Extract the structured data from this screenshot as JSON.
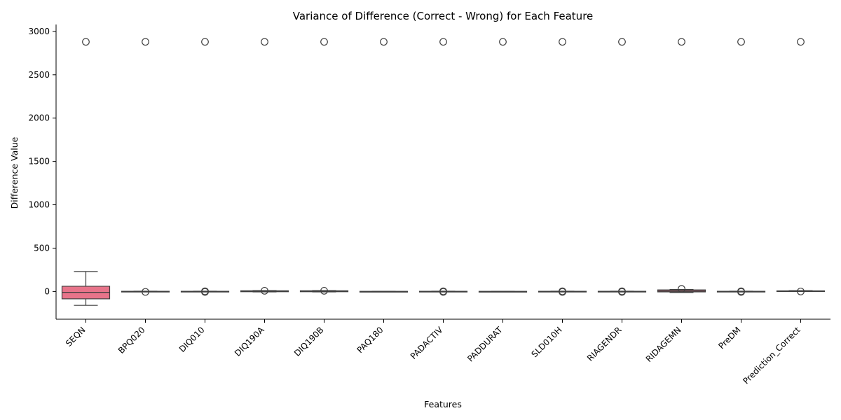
{
  "chart_data": {
    "type": "box",
    "title": "Variance of Difference (Correct - Wrong) for Each Feature",
    "xlabel": "Features",
    "ylabel": "Difference Value",
    "ylim": [
      -320,
      3080
    ],
    "yticks": [
      0,
      500,
      1000,
      1500,
      2000,
      2500,
      3000
    ],
    "grid": false,
    "colors": {
      "box_fill": "#e8748a",
      "line": "#3f3f3f",
      "axis": "#000000"
    },
    "categories": [
      "SEQN",
      "BPQ020",
      "DIQ010",
      "DIQ190A",
      "DIQ190B",
      "PAQ180",
      "PADACTIV",
      "PADDURAT",
      "SLD010H",
      "RIAGENDR",
      "RIDAGEMN",
      "PreDM",
      "Prediction_Correct"
    ],
    "boxes": [
      {
        "q1": -85,
        "median": -10,
        "q3": 60,
        "whisker_low": -160,
        "whisker_high": 230,
        "outliers": [
          2880
        ]
      },
      {
        "q1": -3,
        "median": 0,
        "q3": 2,
        "whisker_low": -4,
        "whisker_high": 3,
        "outliers": [
          -5,
          2880
        ]
      },
      {
        "q1": -3,
        "median": 0,
        "q3": 2,
        "whisker_low": -4,
        "whisker_high": 3,
        "outliers": [
          -5,
          2,
          2880
        ]
      },
      {
        "q1": -3,
        "median": 2,
        "q3": 8,
        "whisker_low": -5,
        "whisker_high": 10,
        "outliers": [
          8,
          2880
        ]
      },
      {
        "q1": -3,
        "median": 2,
        "q3": 8,
        "whisker_low": -5,
        "whisker_high": 10,
        "outliers": [
          8,
          2880
        ]
      },
      {
        "q1": -2,
        "median": 0,
        "q3": 1,
        "whisker_low": -3,
        "whisker_high": 2,
        "outliers": [
          2880
        ]
      },
      {
        "q1": -3,
        "median": 0,
        "q3": 2,
        "whisker_low": -4,
        "whisker_high": 3,
        "outliers": [
          -5,
          2,
          2880
        ]
      },
      {
        "q1": -2,
        "median": 0,
        "q3": 1,
        "whisker_low": -3,
        "whisker_high": 2,
        "outliers": [
          2880
        ]
      },
      {
        "q1": -3,
        "median": 0,
        "q3": 2,
        "whisker_low": -4,
        "whisker_high": 3,
        "outliers": [
          -5,
          2,
          2880
        ]
      },
      {
        "q1": -3,
        "median": 0,
        "q3": 2,
        "whisker_low": -4,
        "whisker_high": 3,
        "outliers": [
          -5,
          2,
          2880
        ]
      },
      {
        "q1": -5,
        "median": 5,
        "q3": 18,
        "whisker_low": -12,
        "whisker_high": 22,
        "outliers": [
          30,
          2880
        ]
      },
      {
        "q1": -3,
        "median": 0,
        "q3": 2,
        "whisker_low": -4,
        "whisker_high": 3,
        "outliers": [
          -5,
          2,
          2880
        ]
      },
      {
        "q1": 3,
        "median": 5,
        "q3": 7,
        "whisker_low": 2,
        "whisker_high": 9,
        "outliers": [
          0,
          2880
        ]
      }
    ]
  }
}
